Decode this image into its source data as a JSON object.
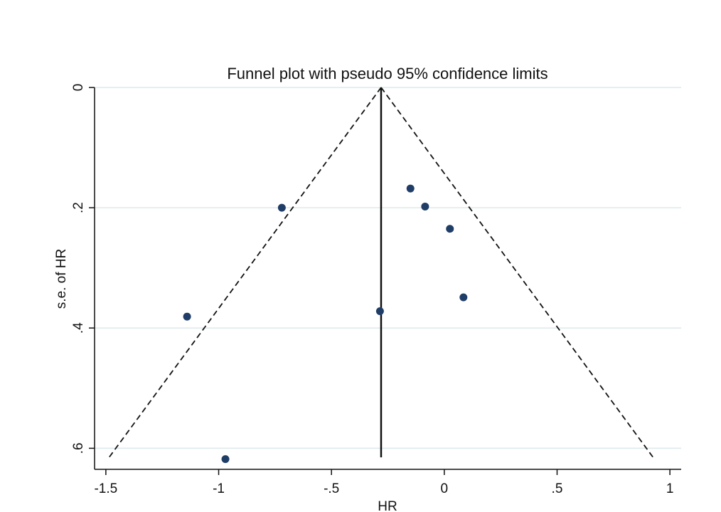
{
  "chart_data": {
    "type": "scatter",
    "title": "Funnel plot with pseudo 95% confidence limits",
    "xlabel": "HR",
    "ylabel": "s.e. of HR",
    "xlim": [
      -1.55,
      1.05
    ],
    "ylim": [
      0,
      0.635
    ],
    "y_reversed": true,
    "x_ticks": [
      -1.5,
      -1,
      -0.5,
      0,
      0.5,
      1
    ],
    "x_tick_labels": [
      "-1.5",
      "-1",
      "-.5",
      "0",
      ".5",
      "1"
    ],
    "y_ticks": [
      0,
      0.2,
      0.4,
      0.6
    ],
    "y_tick_labels": [
      "0",
      ".2",
      ".4",
      ".6"
    ],
    "grid": "horizontal",
    "pooled_estimate": -0.28,
    "funnel_max_se": 0.615,
    "points": [
      {
        "x": -0.15,
        "y": 0.168
      },
      {
        "x": -0.085,
        "y": 0.198
      },
      {
        "x": 0.025,
        "y": 0.235
      },
      {
        "x": -0.72,
        "y": 0.2
      },
      {
        "x": 0.085,
        "y": 0.349
      },
      {
        "x": -1.14,
        "y": 0.381
      },
      {
        "x": -0.285,
        "y": 0.372
      },
      {
        "x": -0.97,
        "y": 0.618
      }
    ],
    "colors": {
      "point": "#1f3d66",
      "grid": "#dde9ec",
      "line": "#111111"
    }
  }
}
